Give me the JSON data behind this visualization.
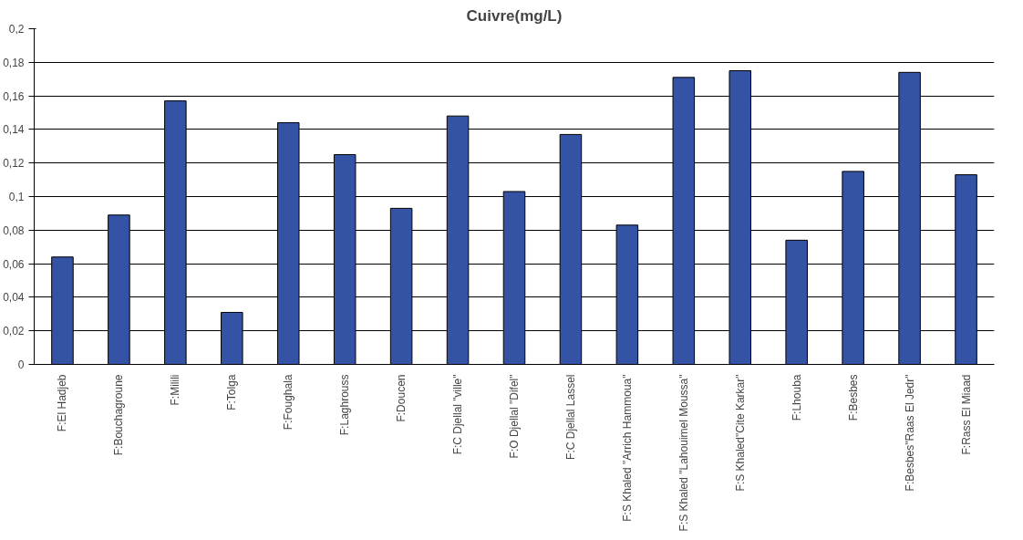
{
  "chart_data": {
    "type": "bar",
    "title": "Cuivre(mg/L)",
    "categories": [
      "F:El Hadjeb",
      "F:Bouchagroune",
      "F:Milili",
      "F:Tolga",
      "F:Foughala",
      "F:Laghrouss",
      "F:Doucen",
      "F:C Djellal \"ville\"",
      "F:O Djellal \"Difel\"",
      "F:C Djellal Lassel",
      "F:S Khaled \"Arrich Hammoua\"",
      "F:S Khaled \"Lahouimel Moussa\"",
      "F:S Khaled\"Cite Karkar\"",
      "F:Lhouba",
      "F:Besbes",
      "F:Besbes\"Raas El Jedr\"",
      "F:Rass El Miaad"
    ],
    "values": [
      0.064,
      0.089,
      0.157,
      0.031,
      0.144,
      0.125,
      0.093,
      0.148,
      0.103,
      0.137,
      0.083,
      0.171,
      0.175,
      0.074,
      0.115,
      0.174,
      0.113
    ],
    "color": "#3453a4",
    "ylim": [
      0,
      0.2
    ],
    "yticks": [
      0,
      {
        "value": 0.02,
        "label": "0,02"
      },
      {
        "value": 0.04,
        "label": "0,04"
      },
      {
        "value": 0.06,
        "label": "0,06"
      },
      {
        "value": 0.08,
        "label": "0,08"
      },
      {
        "value": 0.1,
        "label": "0,1"
      },
      {
        "value": 0.12,
        "label": "0,12"
      },
      {
        "value": 0.14,
        "label": "0,14"
      },
      {
        "value": 0.16,
        "label": "0,16"
      },
      {
        "value": 0.18,
        "label": "0,18"
      },
      {
        "value": 0.2,
        "label": "0,2"
      }
    ],
    "grid": "y"
  }
}
